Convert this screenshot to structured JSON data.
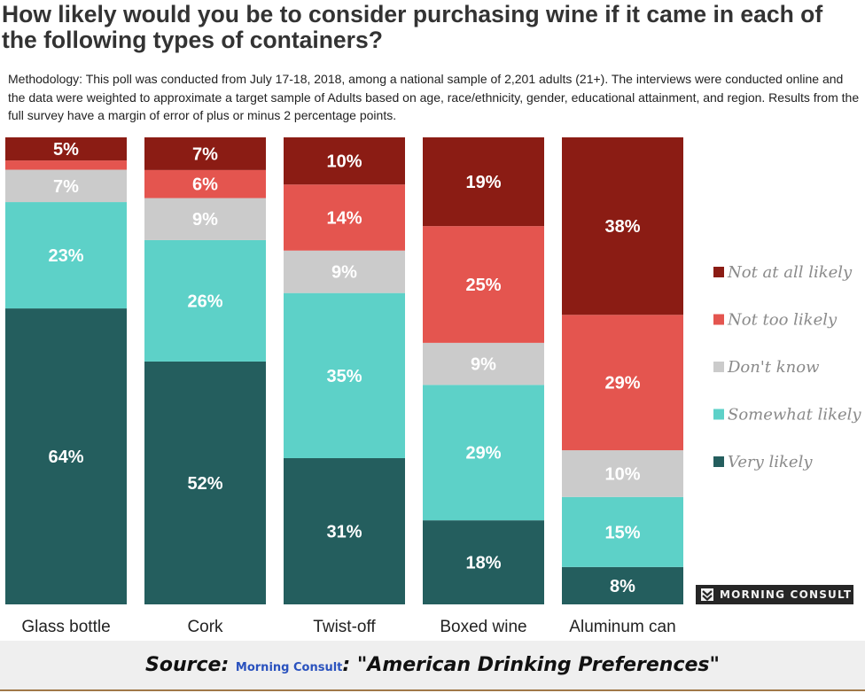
{
  "header": {
    "title": "How likely would you be to consider purchasing wine if it came in each of the following types of containers?",
    "methodology": "Methodology: This poll was conducted from July 17-18, 2018, among a national sample of 2,201 adults (21+). The interviews were conducted online and the data were weighted to approximate a target sample of Adults based on age, race/ethnicity, gender, educational attainment, and region. Results from the full survey have a margin of error of plus or minus 2 percentage points."
  },
  "chart_data": {
    "type": "bar",
    "stacked": true,
    "orientation": "vertical",
    "title": "How likely would you be to consider purchasing wine if it came in each of the following types of containers?",
    "xlabel": "",
    "ylabel": "",
    "unit": "%",
    "ylim": [
      0,
      100
    ],
    "grid": false,
    "legend_position": "right",
    "categories": [
      "Glass bottle",
      "Cork",
      "Twist-off",
      "Boxed wine",
      "Aluminum can"
    ],
    "series": [
      {
        "name": "Very likely",
        "color": "#245e5e",
        "values": [
          64,
          52,
          31,
          18,
          8
        ],
        "labels": [
          "64%",
          "52%",
          "31%",
          "18%",
          "8%"
        ]
      },
      {
        "name": "Somewhat likely",
        "color": "#5dd1c8",
        "values": [
          23,
          26,
          35,
          29,
          15
        ],
        "labels": [
          "23%",
          "26%",
          "35%",
          "29%",
          "15%"
        ]
      },
      {
        "name": "Don't know",
        "color": "#cbcbcb",
        "values": [
          7,
          9,
          9,
          9,
          10
        ],
        "labels": [
          "7%",
          "9%",
          "9%",
          "9%",
          "10%"
        ]
      },
      {
        "name": "Not too likely",
        "color": "#e4554f",
        "values": [
          2,
          6,
          14,
          25,
          29
        ],
        "labels": [
          "",
          "6%",
          "14%",
          "25%",
          "29%"
        ]
      },
      {
        "name": "Not at all likely",
        "color": "#8b1c14",
        "values": [
          5,
          7,
          10,
          19,
          38
        ],
        "labels": [
          "5%",
          "7%",
          "10%",
          "19%",
          "38%"
        ]
      }
    ],
    "legend_order": [
      "Not at all likely",
      "Not too likely",
      "Don't know",
      "Somewhat likely",
      "Very likely"
    ]
  },
  "branding": {
    "logo_text": "MORNING CONSULT",
    "logo_icon": "morning-consult-chevron-icon"
  },
  "source": {
    "prefix": "Source: ",
    "link_text": "Morning Consult",
    "suffix": ": \"American Drinking Preferences\"",
    "link_color": "#2a52be"
  }
}
